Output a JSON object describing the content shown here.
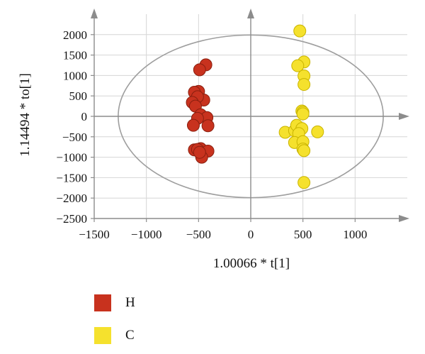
{
  "chart_data": {
    "type": "scatter",
    "xlabel": "1.00066 * t[1]",
    "ylabel": "1.14494 * to[1]",
    "xlim": [
      -1500,
      1500
    ],
    "ylim": [
      -2500,
      2500
    ],
    "xticks": [
      -1500,
      -1000,
      -500,
      0,
      500,
      1000
    ],
    "yticks": [
      -2500,
      -2000,
      -1500,
      -1000,
      -500,
      0,
      500,
      1000,
      1500,
      2000
    ],
    "xtick_labels": [
      "−1500",
      "−1000",
      "−500",
      "0",
      "500",
      "1000"
    ],
    "ytick_labels": [
      "−2500",
      "−2000",
      "−1500",
      "−1000",
      "−500",
      "0",
      "500",
      "1000",
      "1500",
      "2000"
    ],
    "grid": true,
    "legend_position": "below",
    "confidence_ellipse": {
      "center": [
        0,
        0
      ],
      "x_radius": 1270,
      "y_radius": 1990
    },
    "series": [
      {
        "name": "H",
        "color": "#c8321e",
        "points": [
          [
            -430,
            1260
          ],
          [
            -490,
            1140
          ],
          [
            -500,
            610
          ],
          [
            -540,
            590
          ],
          [
            -450,
            400
          ],
          [
            -510,
            480
          ],
          [
            -560,
            340
          ],
          [
            -530,
            250
          ],
          [
            -480,
            40
          ],
          [
            -420,
            -30
          ],
          [
            -510,
            -50
          ],
          [
            -550,
            -220
          ],
          [
            -410,
            -230
          ],
          [
            -540,
            -820
          ],
          [
            -480,
            -790
          ],
          [
            -410,
            -850
          ],
          [
            -470,
            -1000
          ],
          [
            -510,
            -810
          ],
          [
            -490,
            -880
          ]
        ]
      },
      {
        "name": "C",
        "color": "#f5e12d",
        "points": [
          [
            470,
            2090
          ],
          [
            510,
            1330
          ],
          [
            450,
            1240
          ],
          [
            510,
            990
          ],
          [
            510,
            780
          ],
          [
            490,
            130
          ],
          [
            500,
            100
          ],
          [
            500,
            60
          ],
          [
            330,
            -390
          ],
          [
            420,
            -350
          ],
          [
            440,
            -220
          ],
          [
            490,
            -300
          ],
          [
            460,
            -420
          ],
          [
            640,
            -380
          ],
          [
            420,
            -640
          ],
          [
            500,
            -620
          ],
          [
            500,
            -800
          ],
          [
            510,
            -840
          ],
          [
            510,
            -1620
          ]
        ]
      }
    ]
  }
}
